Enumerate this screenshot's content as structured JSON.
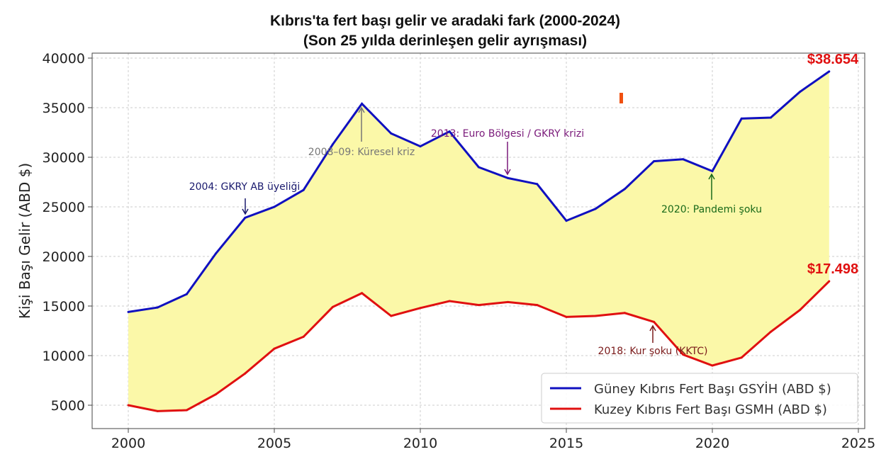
{
  "chart_data": {
    "type": "line",
    "title": "Kıbrıs'ta fert başı gelir ve aradaki fark (2000-2024)",
    "subtitle": "(Son 25 yılda derinleşen gelir ayrışması)",
    "xlabel": "",
    "ylabel": "Kişi Başı Gelir (ABD $)",
    "xlim": [
      1998.8,
      2025.2
    ],
    "ylim": [
      3500,
      40500
    ],
    "xticks": [
      2000,
      2005,
      2010,
      2015,
      2020,
      2025
    ],
    "yticks": [
      5000,
      10000,
      15000,
      20000,
      25000,
      30000,
      35000,
      40000
    ],
    "grid": true,
    "legend_position": "bottom-right",
    "x": [
      2000,
      2001,
      2002,
      2003,
      2004,
      2005,
      2006,
      2007,
      2008,
      2009,
      2010,
      2011,
      2012,
      2013,
      2014,
      2015,
      2016,
      2017,
      2018,
      2019,
      2020,
      2021,
      2022,
      2023,
      2024
    ],
    "series": [
      {
        "name": "Güney Kıbrıs Fert Başı GSYİH (ABD $)",
        "color": "#1010c0",
        "values": [
          14400,
          14850,
          16200,
          20300,
          23900,
          25000,
          26700,
          31300,
          35400,
          32400,
          31100,
          32600,
          29000,
          27900,
          27300,
          23600,
          24800,
          26800,
          29600,
          29800,
          28600,
          33900,
          34000,
          36600,
          38654
        ]
      },
      {
        "name": "Kuzey Kıbrıs Fert Başı GSMH (ABD $)",
        "color": "#e01010",
        "values": [
          5000,
          4400,
          4500,
          6100,
          8200,
          10700,
          11900,
          14900,
          16300,
          14000,
          14800,
          15500,
          15100,
          15400,
          15100,
          13900,
          14000,
          14300,
          13400,
          10100,
          9000,
          9800,
          12400,
          14600,
          17498
        ]
      }
    ],
    "fill_between_color": "#fbf8a8",
    "end_labels": [
      "$38.654",
      "$17.498"
    ],
    "annotations": [
      {
        "text": "2004: GKRY AB üyeliği",
        "x": 2004,
        "color": "#1a1a6e"
      },
      {
        "text": "2008–09: Küresel kriz",
        "x": 2008,
        "color": "#777777"
      },
      {
        "text": "2013: Euro Bölgesi / GKRY krizi",
        "x": 2013,
        "color": "#7a1a7a"
      },
      {
        "text": "2020: Pandemi şoku",
        "x": 2020,
        "color": "#1a6a1a"
      },
      {
        "text": "2018: Kur şoku (KKTC)",
        "x": 2018,
        "color": "#7a1a1a"
      }
    ]
  }
}
